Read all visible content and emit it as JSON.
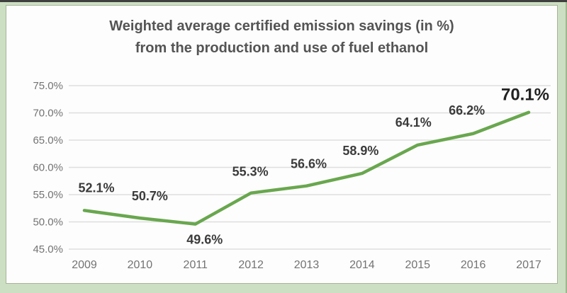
{
  "frame": {
    "background_color": "#cddfc2",
    "top_edge_color": "#3f3f3f",
    "panel_border_color": "#a6b29b",
    "panel_background": "#fdfdfd"
  },
  "chart_data": {
    "type": "line",
    "title_line1": "Weighted average certified emission savings (in %)",
    "title_line2": "from the production and use of fuel ethanol",
    "categories": [
      "2009",
      "2010",
      "2011",
      "2012",
      "2013",
      "2014",
      "2015",
      "2016",
      "2017"
    ],
    "series": [
      {
        "name": "Weighted average certified emission savings",
        "values": [
          52.1,
          50.7,
          49.6,
          55.3,
          56.6,
          58.9,
          64.1,
          66.2,
          70.1
        ]
      }
    ],
    "data_labels": [
      "52.1%",
      "50.7%",
      "49.6%",
      "55.3%",
      "56.6%",
      "58.9%",
      "64.1%",
      "66.2%",
      "70.1%"
    ],
    "emphasized_label_index": 8,
    "y_tick_labels": [
      "75.0%",
      "70.0%",
      "65.0%",
      "60.0%",
      "55.0%",
      "50.0%",
      "45.0%"
    ],
    "y_tick_values": [
      75,
      70,
      65,
      60,
      55,
      50,
      45
    ],
    "ylim": [
      45,
      75
    ],
    "xlabel": "",
    "ylabel": "",
    "grid": true,
    "legend": "none",
    "line_color": "#69a74e",
    "gridline_color": "#dedede",
    "data_label_color": "#3b3b3b",
    "axis_label_color": "#737373",
    "title_color": "#545454"
  }
}
